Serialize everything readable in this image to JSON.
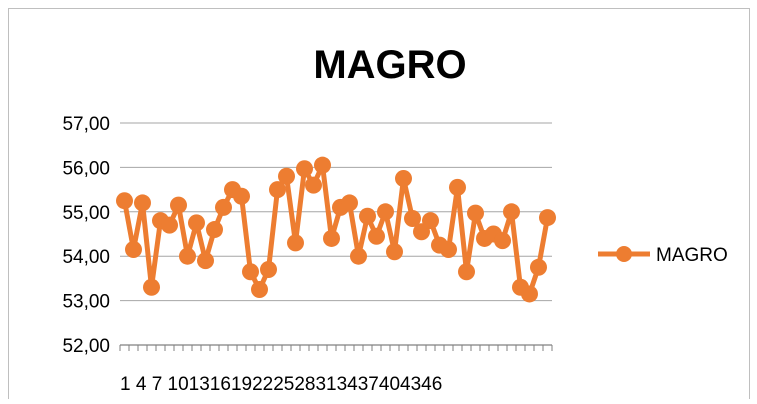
{
  "chart_data": {
    "type": "line",
    "title": "MAGRO",
    "xlabel": "",
    "ylabel": "",
    "ylim": [
      52,
      57
    ],
    "y_ticks": [
      "52,00",
      "53,00",
      "54,00",
      "55,00",
      "56,00",
      "57,00"
    ],
    "x_tick_labels": [
      "1",
      "4",
      "7",
      "10",
      "13",
      "16",
      "19",
      "22",
      "25",
      "28",
      "31",
      "34",
      "37",
      "40",
      "43",
      "46"
    ],
    "x_tick_label_text": "1 4 7 10131619222528313437404346",
    "grid": true,
    "legend_position": "right",
    "series": [
      {
        "name": "MAGRO",
        "color": "#ED7D31",
        "values": [
          55.25,
          54.15,
          55.2,
          53.3,
          54.8,
          54.7,
          55.15,
          54.0,
          54.75,
          53.9,
          54.6,
          55.1,
          55.5,
          55.35,
          53.65,
          53.25,
          53.7,
          55.5,
          55.8,
          54.3,
          55.97,
          55.6,
          56.05,
          54.4,
          55.1,
          55.2,
          54.0,
          54.9,
          54.45,
          55.0,
          54.1,
          55.75,
          54.85,
          54.55,
          54.8,
          54.25,
          54.15,
          55.55,
          53.65,
          54.97,
          54.4,
          54.5,
          54.35,
          55.0,
          53.3,
          53.15,
          53.75,
          54.87
        ]
      }
    ]
  }
}
